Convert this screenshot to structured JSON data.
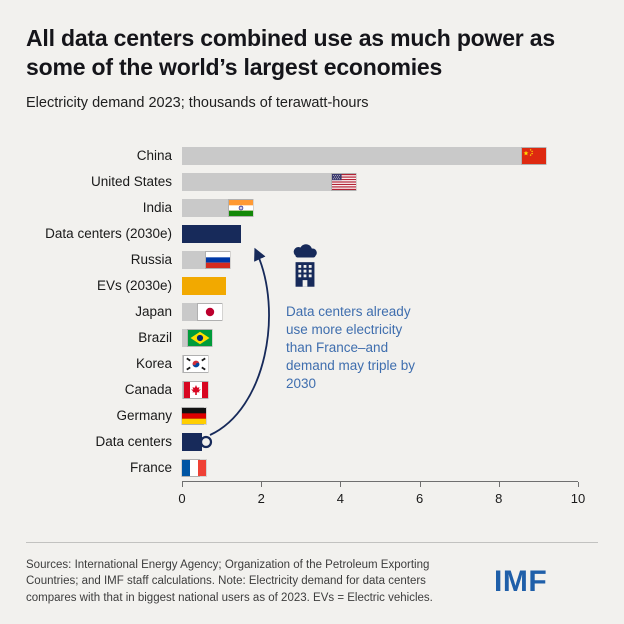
{
  "header": {
    "title": "All data centers combined use as much power as some of the world’s largest economies",
    "subtitle": "Electricity demand 2023; thousands of terawatt-hours"
  },
  "chart_data": {
    "type": "bar",
    "orientation": "horizontal",
    "title": "All data centers combined use as much power as some of the world’s largest economies",
    "subtitle": "Electricity demand 2023; thousands of terawatt-hours",
    "xlabel": "Electricity demand 2023; thousands of terawatt-hours",
    "xlim": [
      0,
      10
    ],
    "xticks": [
      0,
      2,
      4,
      6,
      8,
      10
    ],
    "grid": false,
    "legend": "none",
    "bars": [
      {
        "label": "China",
        "value": 9.2,
        "flag": "china",
        "color": "default"
      },
      {
        "label": "United States",
        "value": 4.4,
        "flag": "us",
        "color": "default"
      },
      {
        "label": "India",
        "value": 1.8,
        "flag": "india",
        "color": "default"
      },
      {
        "label": "Data centers (2030e)",
        "value": 1.5,
        "color": "highlight"
      },
      {
        "label": "Russia",
        "value": 1.2,
        "flag": "russia",
        "color": "default"
      },
      {
        "label": "EVs (2030e)",
        "value": 1.1,
        "color": "ev"
      },
      {
        "label": "Japan",
        "value": 1.0,
        "flag": "japan",
        "color": "default"
      },
      {
        "label": "Brazil",
        "value": 0.75,
        "flag": "brazil",
        "color": "default"
      },
      {
        "label": "Korea",
        "value": 0.65,
        "flag": "korea",
        "color": "default"
      },
      {
        "label": "Canada",
        "value": 0.65,
        "flag": "canada",
        "color": "default"
      },
      {
        "label": "Germany",
        "value": 0.55,
        "flag": "germany",
        "color": "default"
      },
      {
        "label": "Data centers",
        "value": 0.5,
        "color": "highlight"
      },
      {
        "label": "France",
        "value": 0.45,
        "flag": "france",
        "color": "default"
      }
    ],
    "colors": {
      "default": "#c9c9c9",
      "highlight": "#172a5a",
      "ev": "#f2a900"
    },
    "annotation": {
      "text": "Data centers already use more electricity than France–and demand may triple by 2030",
      "icon": "data-center-icon",
      "color": "#3f6eae"
    }
  },
  "footer": {
    "sources": "Sources: International Energy Agency; Organization of the Petroleum Exporting Countries; and IMF staff calculations. Note: Electricity demand for data centers compares with that in biggest national users as of 2023. EVs = Electric vehicles.",
    "logo": "IMF"
  }
}
